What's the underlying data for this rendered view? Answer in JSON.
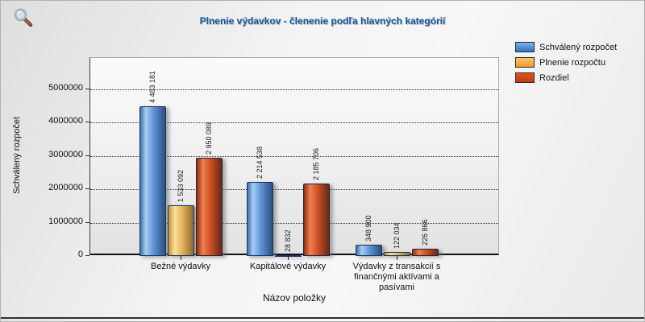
{
  "header": {
    "title": "Plnenie výdavkov - členenie podľa hlavných kategórií",
    "title_color": "#17599c"
  },
  "toolbar": {
    "zoom_icon": "magnifier-icon"
  },
  "chart_data": {
    "type": "bar",
    "title": "Plnenie výdavkov - členenie podľa hlavných kategórií",
    "xlabel": "Názov položky",
    "ylabel": "Schválený rozpočet",
    "ylim": [
      0,
      6000000
    ],
    "yticks": [
      0,
      1000000,
      2000000,
      3000000,
      4000000,
      5000000
    ],
    "grid": "horizontal-dotted",
    "legend_position": "top-right",
    "categories": [
      "Bežné výdavky",
      "Kapitálové výdavky",
      "Výdavky z transakcií s finančnými aktívami a pasívami"
    ],
    "series": [
      {
        "name": "Schválený rozpočet",
        "color": "#4a86d8",
        "values": [
          4483181,
          2214538,
          348900
        ],
        "labels": [
          "4 483 181",
          "2 214 538",
          "348 900"
        ]
      },
      {
        "name": "Plnenie rozpočtu",
        "color": "#f5a93d",
        "values": [
          1533092,
          28832,
          122034
        ],
        "labels": [
          "1 533 092",
          "28 832",
          "122 034"
        ]
      },
      {
        "name": "Rozdiel",
        "color": "#cc3b10",
        "values": [
          2950089,
          2185706,
          226866
        ],
        "labels": [
          "2 950 089",
          "2 185 706",
          "226 866"
        ]
      }
    ]
  }
}
